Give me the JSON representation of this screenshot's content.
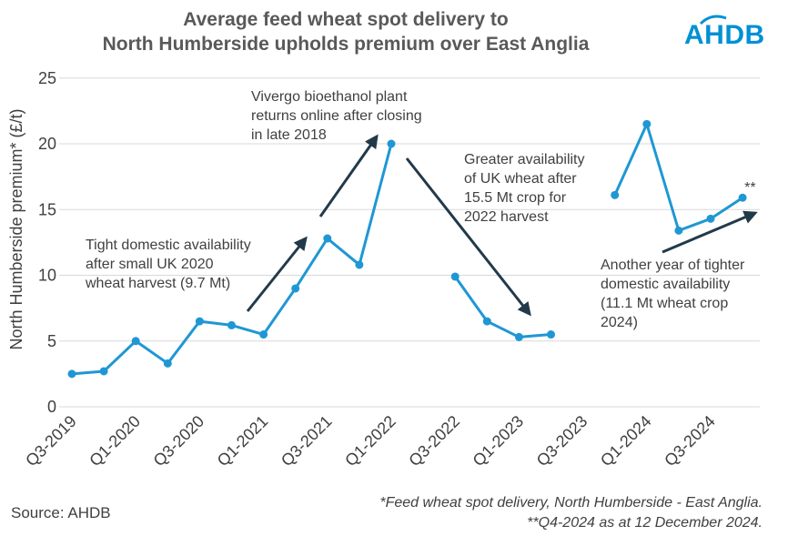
{
  "title_line1": "Average feed wheat spot delivery to",
  "title_line2": "North Humberside upholds premium over East Anglia",
  "logo_text": "AHDB",
  "source": "Source: AHDB",
  "footnote1": "*Feed wheat spot delivery, North Humberside - East Anglia.",
  "footnote2": "**Q4-2024 as at 12 December 2024.",
  "colors": {
    "line": "#1f97d4",
    "arrow": "#22394a",
    "grid": "#d9d9d9",
    "brand": "#0090d4"
  },
  "chart_data": {
    "type": "line",
    "title": "Average feed wheat spot delivery to North Humberside upholds premium over East Anglia",
    "ylabel": "North Humberside premium* (£/t)",
    "xlabel": "",
    "ylim": [
      0,
      25
    ],
    "yticks": [
      0,
      5,
      10,
      15,
      20,
      25
    ],
    "grid": true,
    "categories": [
      "Q3-2019",
      "Q4-2019",
      "Q1-2020",
      "Q2-2020",
      "Q3-2020",
      "Q4-2020",
      "Q1-2021",
      "Q2-2021",
      "Q3-2021",
      "Q4-2021",
      "Q1-2022",
      "Q2-2022",
      "Q3-2022",
      "Q4-2022",
      "Q1-2023",
      "Q2-2023",
      "Q3-2023",
      "Q4-2023",
      "Q1-2024",
      "Q2-2024",
      "Q3-2024",
      "Q4-2024"
    ],
    "xtick_labels": [
      "Q3-2019",
      "Q1-2020",
      "Q3-2020",
      "Q1-2021",
      "Q3-2021",
      "Q1-2022",
      "Q3-2022",
      "Q1-2023",
      "Q3-2023",
      "Q1-2024",
      "Q3-2024"
    ],
    "values": [
      2.5,
      2.7,
      5.0,
      3.3,
      6.5,
      6.2,
      5.5,
      9.0,
      12.8,
      10.8,
      20.0,
      null,
      9.9,
      6.5,
      5.3,
      5.5,
      null,
      16.1,
      21.5,
      13.4,
      14.3,
      15.9
    ],
    "point_marker_text": {
      "index": 21,
      "text": "**"
    },
    "annotations": [
      {
        "lines": [
          "Tight domestic availability",
          "after small UK 2020",
          "wheat harvest (9.7 Mt)"
        ]
      },
      {
        "lines": [
          "Vivergo bioethanol plant",
          "returns online after closing",
          "in late 2018"
        ]
      },
      {
        "lines": [
          "Greater availability",
          "of UK wheat after",
          "15.5 Mt crop for",
          "2022 harvest"
        ]
      },
      {
        "lines": [
          "Another year of tighter",
          "domestic availability",
          "(11.1 Mt wheat crop",
          "2024)"
        ]
      }
    ]
  }
}
